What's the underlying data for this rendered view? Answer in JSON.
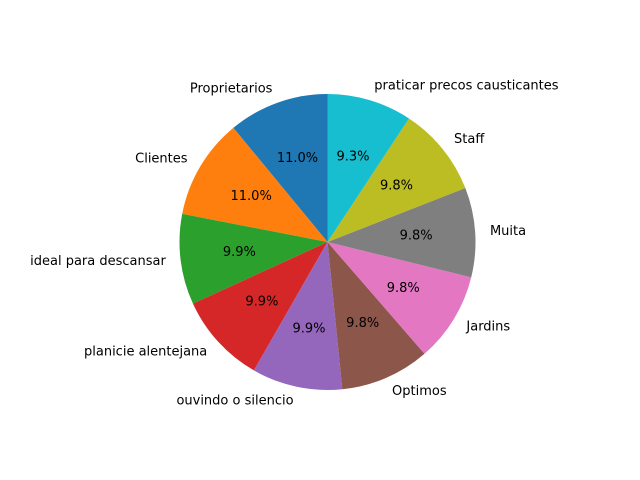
{
  "chart_data": {
    "type": "pie",
    "title": "",
    "start_angle_deg": 90,
    "direction": "counterclockwise",
    "slices": [
      {
        "label": "Proprietarios",
        "value": 11.0,
        "pct_text": "11.0%",
        "color": "#1f77b4"
      },
      {
        "label": "Clientes",
        "value": 11.0,
        "pct_text": "11.0%",
        "color": "#ff7f0e"
      },
      {
        "label": "ideal para descansar",
        "value": 9.9,
        "pct_text": "9.9%",
        "color": "#2ca02c"
      },
      {
        "label": "planicie alentejana",
        "value": 9.9,
        "pct_text": "9.9%",
        "color": "#d62728"
      },
      {
        "label": "ouvindo o silencio",
        "value": 9.9,
        "pct_text": "9.9%",
        "color": "#9467bd"
      },
      {
        "label": "Optimos",
        "value": 9.8,
        "pct_text": "9.8%",
        "color": "#8c564b"
      },
      {
        "label": "Jardins",
        "value": 9.8,
        "pct_text": "9.8%",
        "color": "#e377c2"
      },
      {
        "label": "Muita",
        "value": 9.8,
        "pct_text": "9.8%",
        "color": "#7f7f7f"
      },
      {
        "label": "Staff",
        "value": 9.8,
        "pct_text": "9.8%",
        "color": "#bcbd22"
      },
      {
        "label": "praticar precos causticantes",
        "value": 9.3,
        "pct_text": "9.3%",
        "color": "#17becf"
      }
    ]
  }
}
